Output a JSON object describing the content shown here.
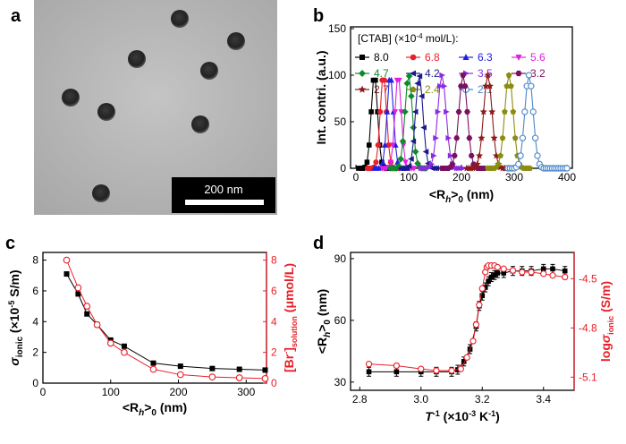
{
  "panels": {
    "a": {
      "label": "a",
      "scale_bar": "200 nm"
    },
    "b": {
      "label": "b"
    },
    "c": {
      "label": "c"
    },
    "d": {
      "label": "d"
    }
  },
  "chart_data": [
    {
      "id": "b",
      "type": "line",
      "title": "",
      "xlabel_main": "<R",
      "xlabel_sub": "h",
      "xlabel_tail": ">",
      "xlabel_sub2": "0",
      "xlabel_unit": " (nm)",
      "ylabel": "Int. contri.   (a.u.)",
      "xlim": [
        0,
        400
      ],
      "ylim": [
        0,
        150
      ],
      "xticks": [
        0,
        100,
        200,
        300,
        400
      ],
      "yticks": [
        0,
        50,
        100,
        150
      ],
      "legend_title": "[CTAB] (×10",
      "legend_title_exp": "-4",
      "legend_title_tail": " mol/L):",
      "series": [
        {
          "name": "8.0",
          "color": "#000000",
          "marker": "square",
          "peak": 35,
          "width": 6
        },
        {
          "name": "6.8",
          "color": "#e8202a",
          "marker": "circle",
          "peak": 52,
          "width": 6
        },
        {
          "name": "6.3",
          "color": "#2020e0",
          "marker": "triangle-up",
          "peak": 65,
          "width": 6
        },
        {
          "name": "5.6",
          "color": "#e020e0",
          "marker": "triangle-down",
          "peak": 80,
          "width": 6
        },
        {
          "name": "4.7",
          "color": "#0e8a2a",
          "marker": "diamond",
          "peak": 100,
          "width": 7
        },
        {
          "name": "4.2",
          "color": "#1a1a8a",
          "marker": "triangle-left",
          "peak": 120,
          "width": 7
        },
        {
          "name": "3.5",
          "color": "#8a2be2",
          "marker": "triangle-right",
          "peak": 163,
          "width": 8
        },
        {
          "name": "3.2",
          "color": "#7a1060",
          "marker": "hexagon",
          "peak": 203,
          "width": 8
        },
        {
          "name": "2.7",
          "color": "#8b1a1a",
          "marker": "star",
          "peak": 250,
          "width": 8
        },
        {
          "name": "2.4",
          "color": "#8c8c10",
          "marker": "pentagon",
          "peak": 290,
          "width": 8
        },
        {
          "name": "2.1",
          "color": "#4a86c8",
          "marker": "open-circle",
          "peak": 328,
          "width": 8
        }
      ]
    },
    {
      "id": "c",
      "type": "line",
      "xlabel_main": "<R",
      "xlabel_sub": "h",
      "xlabel_tail": ">",
      "xlabel_sub2": "0",
      "xlabel_unit": " (nm)",
      "ylabel_left_main": "σ",
      "ylabel_left_sub": "ionic",
      "ylabel_left_unit": " (×10",
      "ylabel_left_exp": "-5",
      "ylabel_left_tail": " S/m)",
      "ylabel_right_main": "[Br",
      "ylabel_right_sup": "-",
      "ylabel_right_close": "]",
      "ylabel_right_sub": "solution",
      "ylabel_right_unit": " (μmol/L)",
      "xlim": [
        0,
        330
      ],
      "ylim_left": [
        0,
        8.5
      ],
      "ylim_right": [
        0,
        8.5
      ],
      "xticks": [
        0,
        100,
        200,
        300
      ],
      "yticks_left": [
        0,
        2,
        4,
        6,
        8
      ],
      "yticks_right": [
        0,
        2,
        4,
        6,
        8
      ],
      "series": [
        {
          "name": "σ_ionic",
          "axis": "left",
          "color": "#000000",
          "marker": "square",
          "x": [
            35,
            52,
            65,
            80,
            100,
            120,
            163,
            203,
            250,
            290,
            328
          ],
          "y": [
            7.1,
            5.8,
            4.5,
            3.8,
            2.8,
            2.4,
            1.3,
            1.1,
            0.95,
            0.9,
            0.85
          ]
        },
        {
          "name": "[Br-]_solution",
          "axis": "right",
          "color": "#e8202a",
          "marker": "open-circle",
          "x": [
            35,
            52,
            65,
            80,
            100,
            120,
            163,
            203,
            250,
            290,
            328
          ],
          "y": [
            8.0,
            6.2,
            5.0,
            3.8,
            2.6,
            2.0,
            0.9,
            0.55,
            0.4,
            0.35,
            0.3
          ]
        }
      ]
    },
    {
      "id": "d",
      "type": "line",
      "xlabel_main": "T",
      "xlabel_exp": "-1",
      "xlabel_unit": " (×10",
      "xlabel_unit_exp": "-3",
      "xlabel_unit_tail": " K",
      "xlabel_unit_exp2": "-1",
      "xlabel_unit_close": ")",
      "ylabel_left_main": "<R",
      "ylabel_left_sub": "h",
      "ylabel_left_tail": ">",
      "ylabel_left_sub2": "0",
      "ylabel_left_unit": " (nm)",
      "ylabel_right_main": "log",
      "ylabel_right_sigma": "σ",
      "ylabel_right_sub": "ionic",
      "ylabel_right_unit": " (S/m)",
      "xlim": [
        2.77,
        3.5
      ],
      "ylim_left": [
        26,
        93
      ],
      "ylim_right": [
        -5.18,
        -4.34
      ],
      "xticks": [
        2.8,
        3.0,
        3.2,
        3.4
      ],
      "xticklabels": [
        "2.8",
        "3.0",
        "3.2",
        "3.4"
      ],
      "yticks_left": [
        30,
        60,
        90
      ],
      "yticks_right": [
        -5.1,
        -4.8,
        -4.5
      ],
      "yticklabels_right": [
        "-5.1",
        "-4.8",
        "-4.5"
      ],
      "series": [
        {
          "name": "<Rh>0",
          "axis": "left",
          "color": "#000000",
          "marker": "square",
          "error_bars": true,
          "x": [
            2.83,
            2.92,
            3.0,
            3.05,
            3.1,
            3.12,
            3.14,
            3.16,
            3.18,
            3.19,
            3.2,
            3.21,
            3.22,
            3.23,
            3.24,
            3.25,
            3.27,
            3.3,
            3.33,
            3.36,
            3.4,
            3.43,
            3.47
          ],
          "y": [
            35,
            35,
            35,
            35,
            35,
            36,
            40,
            46,
            57,
            67,
            72,
            76,
            79,
            81,
            82,
            83,
            83,
            84,
            84,
            84,
            85,
            85,
            84
          ]
        },
        {
          "name": "log σ_ionic",
          "axis": "right",
          "color": "#e8202a",
          "marker": "open-circle",
          "x": [
            2.83,
            2.92,
            3.0,
            3.05,
            3.1,
            3.13,
            3.15,
            3.17,
            3.18,
            3.19,
            3.2,
            3.21,
            3.215,
            3.22,
            3.23,
            3.24,
            3.25,
            3.27,
            3.3,
            3.33,
            3.36,
            3.4,
            3.43,
            3.47
          ],
          "y": [
            -5.02,
            -5.03,
            -5.05,
            -5.06,
            -5.06,
            -5.05,
            -4.98,
            -4.88,
            -4.78,
            -4.66,
            -4.56,
            -4.46,
            -4.43,
            -4.42,
            -4.42,
            -4.42,
            -4.43,
            -4.44,
            -4.45,
            -4.46,
            -4.46,
            -4.47,
            -4.48,
            -4.49
          ]
        }
      ]
    }
  ]
}
